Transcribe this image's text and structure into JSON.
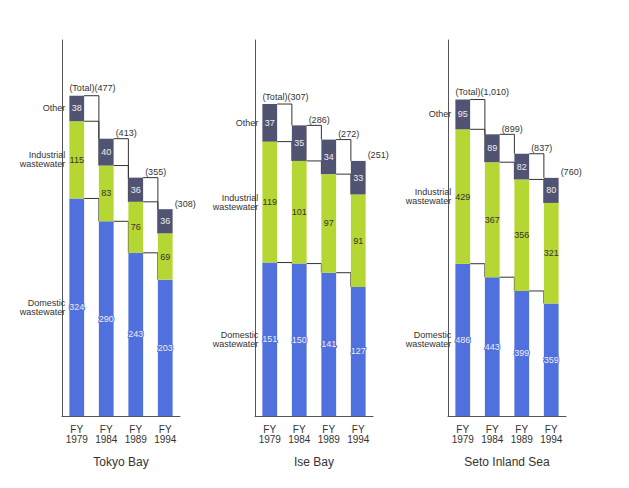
{
  "chart_data": [
    {
      "type": "bar",
      "stacked": true,
      "data_labels": true,
      "grid": false,
      "tick_labels": "x",
      "xlabel": "Tokyo Bay",
      "categories": [
        "FY\n1979",
        "FY\n1984",
        "FY\n1989",
        "FY\n1994"
      ],
      "series": [
        {
          "name": "Domestic\nwastewater",
          "values": [
            324,
            290,
            243,
            203
          ]
        },
        {
          "name": "Industrial\nwastewater",
          "values": [
            115,
            83,
            76,
            69
          ]
        },
        {
          "name": "Other",
          "values": [
            38,
            40,
            36,
            36
          ]
        }
      ],
      "totals": [
        477,
        413,
        355,
        308
      ],
      "total_labels": [
        "(Total)(477)",
        "(413)",
        "(355)",
        "(308)"
      ],
      "ylim": [
        0,
        560
      ]
    },
    {
      "type": "bar",
      "stacked": true,
      "data_labels": true,
      "grid": false,
      "tick_labels": "x",
      "xlabel": "Ise Bay",
      "categories": [
        "FY\n1979",
        "FY\n1984",
        "FY\n1989",
        "FY\n1994"
      ],
      "series": [
        {
          "name": "Domestic\nwastewater",
          "values": [
            151,
            150,
            141,
            127
          ]
        },
        {
          "name": "Industrial\nwastewater",
          "values": [
            119,
            101,
            97,
            91
          ]
        },
        {
          "name": "Other",
          "values": [
            37,
            35,
            34,
            33
          ]
        }
      ],
      "totals": [
        307,
        286,
        272,
        251
      ],
      "total_labels": [
        "(Total)(307)",
        "(286)",
        "(272)",
        "(251)"
      ],
      "ylim": [
        0,
        370
      ]
    },
    {
      "type": "bar",
      "stacked": true,
      "data_labels": true,
      "grid": false,
      "tick_labels": "x",
      "xlabel": "Seto Inland Sea",
      "categories": [
        "FY\n1979",
        "FY\n1984",
        "FY\n1989",
        "FY\n1994"
      ],
      "series": [
        {
          "name": "Domestic\nwastewater",
          "values": [
            486,
            443,
            399,
            359
          ]
        },
        {
          "name": "Industrial\nwastewater",
          "values": [
            429,
            367,
            356,
            321
          ]
        },
        {
          "name": "Other",
          "values": [
            95,
            89,
            82,
            80
          ]
        }
      ],
      "totals": [
        1010,
        899,
        837,
        760
      ],
      "total_labels": [
        "(Total)(1,010)",
        "(899)",
        "(837)",
        "(760)"
      ],
      "ylim": [
        0,
        1200
      ]
    }
  ]
}
